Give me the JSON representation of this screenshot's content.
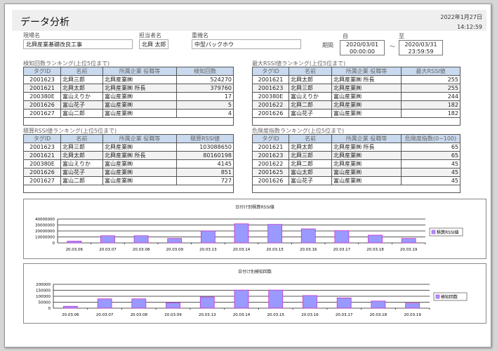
{
  "header": {
    "title": "データ分析",
    "date": "2022年1月27日",
    "time": "14:12:59"
  },
  "filters": {
    "site_label": "現場名",
    "site_value": "北興産業基礎改良工事",
    "person_label": "担当者名",
    "person_value": "北興 太郎",
    "machine_label": "重機名",
    "machine_value": "中型バックホウ",
    "period_label": "期間",
    "from_label": "自",
    "to_label": "至",
    "tilde": "～",
    "from_date": "2020/03/01",
    "from_time": "00:00:00",
    "to_date": "2020/03/31",
    "to_time": "23:59:59"
  },
  "tables": [
    {
      "title": "検知回数ランキング(上位5位まで)",
      "headers": [
        "タグID",
        "名前",
        "所属企業 役職等",
        "検知回数"
      ],
      "rows": [
        [
          "2001623",
          "北興三郎",
          "北興産業㈱",
          "524270"
        ],
        [
          "2001621",
          "北興太郎",
          "北興産業㈱ 所長",
          "379760"
        ],
        [
          "200380E",
          "富山えりか",
          "富山産業㈱",
          "17"
        ],
        [
          "2001626",
          "富山花子",
          "富山産業㈱",
          "5"
        ],
        [
          "2001627",
          "富山二郎",
          "富山産業㈱",
          "4"
        ]
      ]
    },
    {
      "title": "最大RSSI値ランキング(上位5位まで)",
      "headers": [
        "タグID",
        "名前",
        "所属企業 役職等",
        "最大RSSI値"
      ],
      "rows": [
        [
          "2001621",
          "北興太郎",
          "北興産業㈱ 所長",
          "255"
        ],
        [
          "2001623",
          "北興三郎",
          "北興産業㈱",
          "255"
        ],
        [
          "200380E",
          "富山えりか",
          "富山産業㈱",
          "244"
        ],
        [
          "2001622",
          "北興二郎",
          "北興産業㈱",
          "182"
        ],
        [
          "2001626",
          "富山花子",
          "富山産業㈱",
          "182"
        ]
      ]
    },
    {
      "title": "積算RSSI値ランキング(上位5位まで)",
      "headers": [
        "タグID",
        "名前",
        "所属企業 役職等",
        "積算RSSI値"
      ],
      "rows": [
        [
          "2001623",
          "北興三郎",
          "北興産業㈱",
          "103088650"
        ],
        [
          "2001621",
          "北興太郎",
          "北興産業㈱ 所長",
          "80160198"
        ],
        [
          "200380E",
          "富山えりか",
          "富山産業㈱",
          "4145"
        ],
        [
          "2001626",
          "富山花子",
          "富山産業㈱",
          "851"
        ],
        [
          "2001627",
          "富山二郎",
          "富山産業㈱",
          "727"
        ]
      ]
    },
    {
      "title": "危険度指数ランキング(上位5位まで)",
      "headers": [
        "タグID",
        "名前",
        "所属企業 役職等",
        "危険度指数(0−100)"
      ],
      "rows": [
        [
          "2001621",
          "北興太郎",
          "北興産業㈱ 所長",
          "65"
        ],
        [
          "2001623",
          "北興三郎",
          "北興産業㈱",
          "65"
        ],
        [
          "2001622",
          "北興二郎",
          "北興産業㈱",
          "45"
        ],
        [
          "2001625",
          "富山太郎",
          "富山産業㈱",
          "45"
        ],
        [
          "2001626",
          "富山花子",
          "富山産業㈱",
          "45"
        ]
      ]
    }
  ],
  "chart_data": [
    {
      "type": "bar",
      "title": "日付け別積算RSSI値",
      "categories": [
        "20.03.06",
        "20.03.07",
        "20.03.08",
        "20.03.09",
        "20.03.13",
        "20.03.14",
        "20.03.15",
        "20.03.16",
        "20.03.17",
        "20.03.18",
        "20.03.19"
      ],
      "series": [
        {
          "name": "積算RSSI値",
          "values": [
            3000000,
            12000000,
            12000000,
            7500000,
            20000000,
            32000000,
            31000000,
            23500000,
            20500000,
            13000000,
            7500000
          ]
        }
      ],
      "yticks": [
        "0",
        "10000000",
        "20000000",
        "30000000",
        "40000000"
      ],
      "ylim": [
        0,
        40000000
      ],
      "grid": true,
      "legend": "right",
      "color": "#9999ff",
      "edge": "#cc33cc"
    },
    {
      "type": "bar",
      "title": "日付け別検知回数",
      "categories": [
        "20.03.06",
        "20.03.07",
        "20.03.08",
        "20.03.09",
        "20.03.13",
        "20.03.14",
        "20.03.15",
        "20.03.16",
        "20.03.17",
        "20.03.18",
        "20.03.19"
      ],
      "series": [
        {
          "name": "検知回数",
          "values": [
            16000,
            78000,
            78000,
            46000,
            94000,
            152000,
            152000,
            106000,
            86000,
            60000,
            42000
          ]
        }
      ],
      "yticks": [
        "0",
        "50000",
        "100000",
        "150000",
        "200000"
      ],
      "ylim": [
        0,
        200000
      ],
      "grid": true,
      "legend": "right",
      "color": "#9999ff",
      "edge": "#cc33cc"
    }
  ]
}
